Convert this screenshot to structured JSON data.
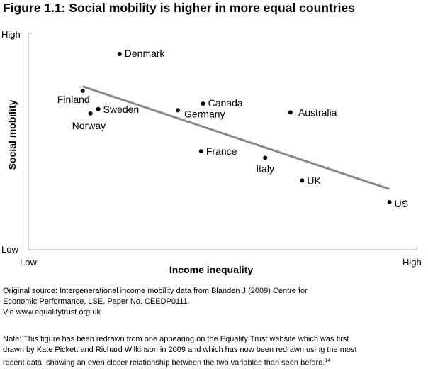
{
  "chart_data": {
    "type": "scatter",
    "title": "Figure 1.1: Social mobility is higher in more equal countries",
    "xlabel": "Income inequality",
    "ylabel": "Social mobility",
    "x_ticks": {
      "low": "Low",
      "high": "High"
    },
    "y_ticks": {
      "low": "Low",
      "high": "High"
    },
    "xlim": [
      0,
      100
    ],
    "ylim": [
      0,
      100
    ],
    "points": [
      {
        "name": "Denmark",
        "x": 23.5,
        "y": 90.5
      },
      {
        "name": "Finland",
        "x": 14,
        "y": 73.5
      },
      {
        "name": "Sweden",
        "x": 18,
        "y": 65
      },
      {
        "name": "Norway",
        "x": 16,
        "y": 63
      },
      {
        "name": "Canada",
        "x": 45,
        "y": 67.5
      },
      {
        "name": "Germany",
        "x": 38.5,
        "y": 64.5
      },
      {
        "name": "Australia",
        "x": 67.5,
        "y": 63.5
      },
      {
        "name": "France",
        "x": 44.5,
        "y": 45.5
      },
      {
        "name": "Italy",
        "x": 61,
        "y": 42.5
      },
      {
        "name": "UK",
        "x": 70.5,
        "y": 32
      },
      {
        "name": "US",
        "x": 93,
        "y": 22
      }
    ],
    "trendline": {
      "x": [
        14,
        93
      ],
      "y": [
        75.5,
        28
      ]
    },
    "legend": "none",
    "grid": false
  },
  "source_lines": [
    "Original source: Intergenerational income mobility data from Blanden J (2009) Centre for",
    "Economic Performance, LSE. Paper No. CEEDP0111.",
    "Via www.equalitytrust.org.uk"
  ],
  "note_lines": [
    "Note: This figure has been redrawn from one appearing on the Equality Trust website which was first",
    "drawn by Kate Pickett and Richard Wilkinson in 2009 and which has now been redrawn using the most",
    "recent data, showing an even closer relationship between the two variables than seen before."
  ],
  "note_footnote": "14",
  "colors": {
    "trendline": "#8a8a8a",
    "axis": "#b4b4b4",
    "point": "#000000"
  }
}
